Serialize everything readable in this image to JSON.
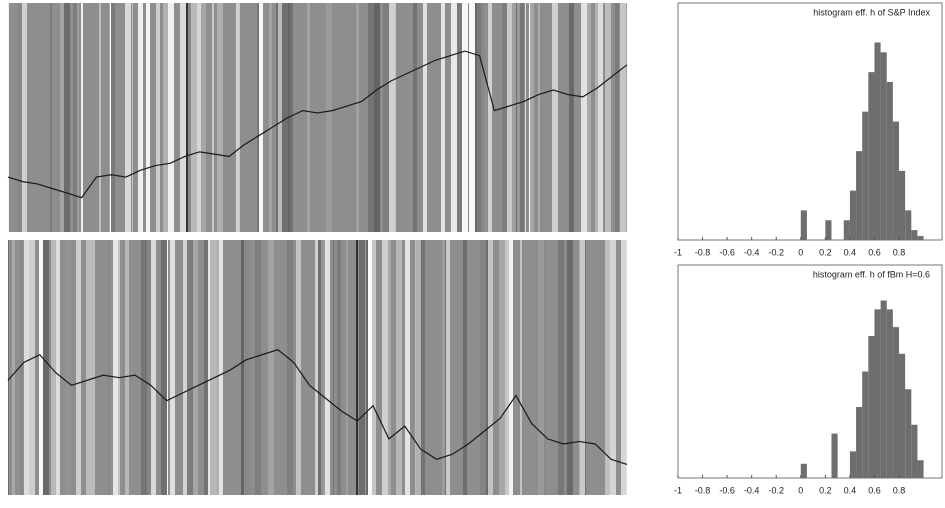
{
  "chart_data": [
    {
      "type": "line",
      "color": "#1a1a1a",
      "ylim": [
        0,
        100
      ],
      "values": [
        24,
        22,
        21,
        19,
        17,
        15,
        24,
        25,
        24,
        27,
        29,
        30,
        33,
        35,
        34,
        33,
        38,
        42,
        46,
        50,
        53,
        52,
        53,
        55,
        57,
        62,
        66,
        69,
        72,
        75,
        77,
        79,
        77,
        53,
        55,
        57,
        60,
        62,
        60,
        59,
        63,
        68,
        73
      ]
    },
    {
      "type": "histogram",
      "title": "histogram eff. h of S&P Index",
      "color": "#6e6e6e",
      "xlim": [
        -1,
        1.15
      ],
      "ylim": [
        0,
        120
      ],
      "xticks": [
        -1,
        -0.8,
        -0.6,
        -0.4,
        -0.2,
        0,
        0.2,
        0.4,
        0.6,
        0.8
      ],
      "bins": [
        -1,
        -0.95,
        -0.9,
        -0.85,
        -0.8,
        -0.75,
        -0.7,
        -0.65,
        -0.6,
        -0.55,
        -0.5,
        -0.45,
        -0.4,
        -0.35,
        -0.3,
        -0.25,
        -0.2,
        -0.15,
        -0.1,
        -0.05,
        0,
        0.05,
        0.1,
        0.15,
        0.2,
        0.25,
        0.3,
        0.35,
        0.4,
        0.45,
        0.5,
        0.55,
        0.6,
        0.65,
        0.7,
        0.75,
        0.8,
        0.85,
        0.9,
        0.95,
        1
      ],
      "counts": [
        0,
        0,
        0,
        0,
        0,
        0,
        0,
        0,
        0,
        0,
        0,
        0,
        0,
        0,
        0,
        0,
        0,
        0,
        0,
        0,
        15,
        0,
        0,
        0,
        10,
        0,
        0,
        10,
        25,
        45,
        65,
        85,
        100,
        95,
        80,
        60,
        35,
        15,
        5,
        2
      ]
    },
    {
      "type": "line",
      "color": "#1a1a1a",
      "ylim": [
        0,
        100
      ],
      "values": [
        45,
        52,
        55,
        48,
        43,
        45,
        47,
        46,
        47,
        43,
        37,
        40,
        43,
        46,
        49,
        53,
        55,
        57,
        52,
        43,
        38,
        33,
        29,
        35,
        22,
        27,
        18,
        14,
        16,
        20,
        25,
        30,
        39,
        28,
        22,
        20,
        21,
        20,
        14,
        12
      ]
    },
    {
      "type": "histogram",
      "title": "histogram eff. h of fBm H=0.6",
      "color": "#6e6e6e",
      "xlim": [
        -1,
        1.15
      ],
      "ylim": [
        0,
        120
      ],
      "xticks": [
        -1,
        -0.8,
        -0.6,
        -0.4,
        -0.2,
        0,
        0.2,
        0.4,
        0.6,
        0.8
      ],
      "bins": [
        -1,
        -0.95,
        -0.9,
        -0.85,
        -0.8,
        -0.75,
        -0.7,
        -0.65,
        -0.6,
        -0.55,
        -0.5,
        -0.45,
        -0.4,
        -0.35,
        -0.3,
        -0.25,
        -0.2,
        -0.15,
        -0.1,
        -0.05,
        0,
        0.05,
        0.1,
        0.15,
        0.2,
        0.25,
        0.3,
        0.35,
        0.4,
        0.45,
        0.5,
        0.55,
        0.6,
        0.65,
        0.7,
        0.75,
        0.8,
        0.85,
        0.9,
        0.95,
        1
      ],
      "counts": [
        0,
        0,
        0,
        0,
        0,
        0,
        0,
        0,
        0,
        0,
        0,
        0,
        0,
        0,
        0,
        0,
        0,
        0,
        0,
        0,
        8,
        0,
        0,
        0,
        0,
        25,
        0,
        0,
        15,
        40,
        60,
        80,
        95,
        100,
        95,
        85,
        70,
        50,
        30,
        10
      ]
    }
  ]
}
